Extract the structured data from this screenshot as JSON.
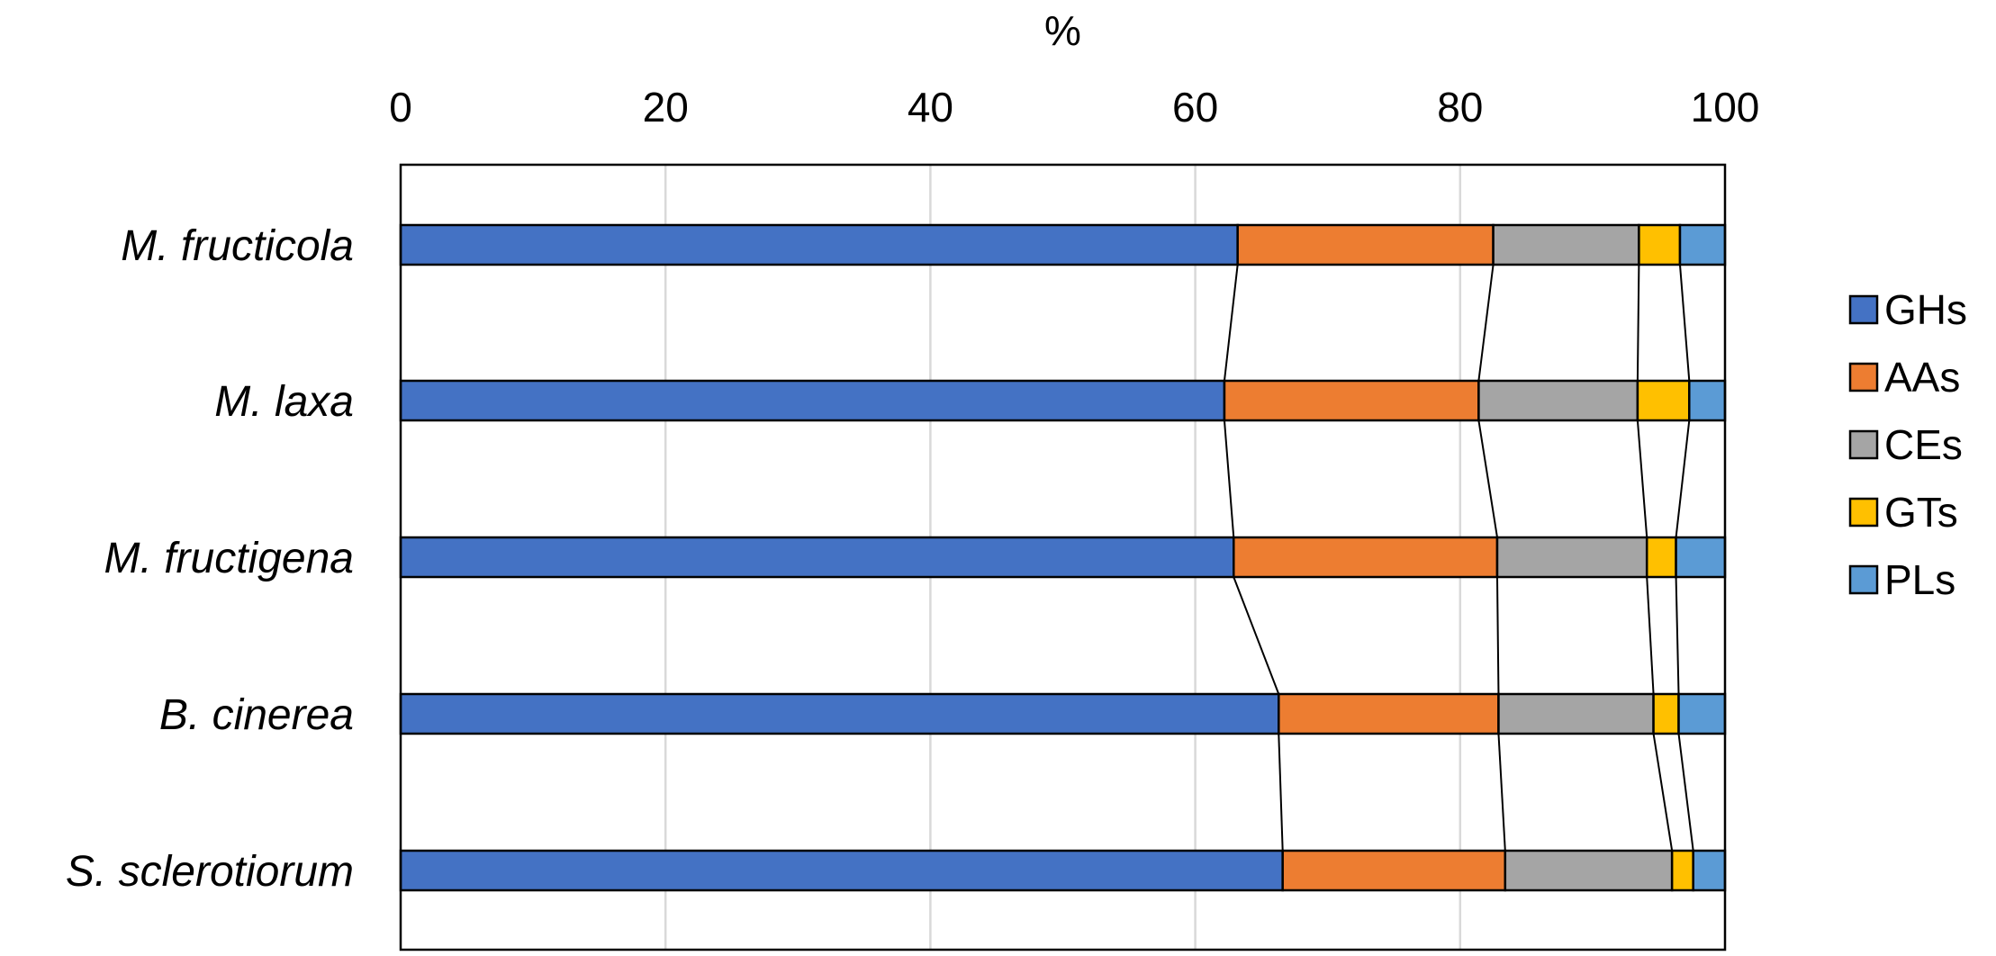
{
  "chart_data": {
    "type": "bar",
    "orientation": "horizontal",
    "stacked": true,
    "title": "",
    "xlabel": "%",
    "ylabel": "",
    "xlim": [
      0,
      100
    ],
    "x_ticks": [
      0,
      20,
      40,
      60,
      80,
      100
    ],
    "x_axis_position": "top",
    "grid": true,
    "series_lines": true,
    "legend_position": "right",
    "categories": [
      "M. fructicola",
      "M. laxa",
      "M. fructigena",
      "B. cinerea",
      "S. sclerotiorum"
    ],
    "series": [
      {
        "name": "GHs",
        "color": "#4472C4",
        "values": [
          63.2,
          62.2,
          62.9,
          66.3,
          66.6
        ]
      },
      {
        "name": "AAs",
        "color": "#ED7D31",
        "values": [
          19.3,
          19.2,
          19.9,
          16.6,
          16.8
        ]
      },
      {
        "name": "CEs",
        "color": "#A5A5A5",
        "values": [
          11.0,
          12.0,
          11.3,
          11.7,
          12.6
        ]
      },
      {
        "name": "GTs",
        "color": "#FFC000",
        "values": [
          3.1,
          3.9,
          2.2,
          1.9,
          1.6
        ]
      },
      {
        "name": "PLs",
        "color": "#5B9BD5",
        "values": [
          3.4,
          2.7,
          3.7,
          3.5,
          2.4
        ]
      }
    ]
  }
}
